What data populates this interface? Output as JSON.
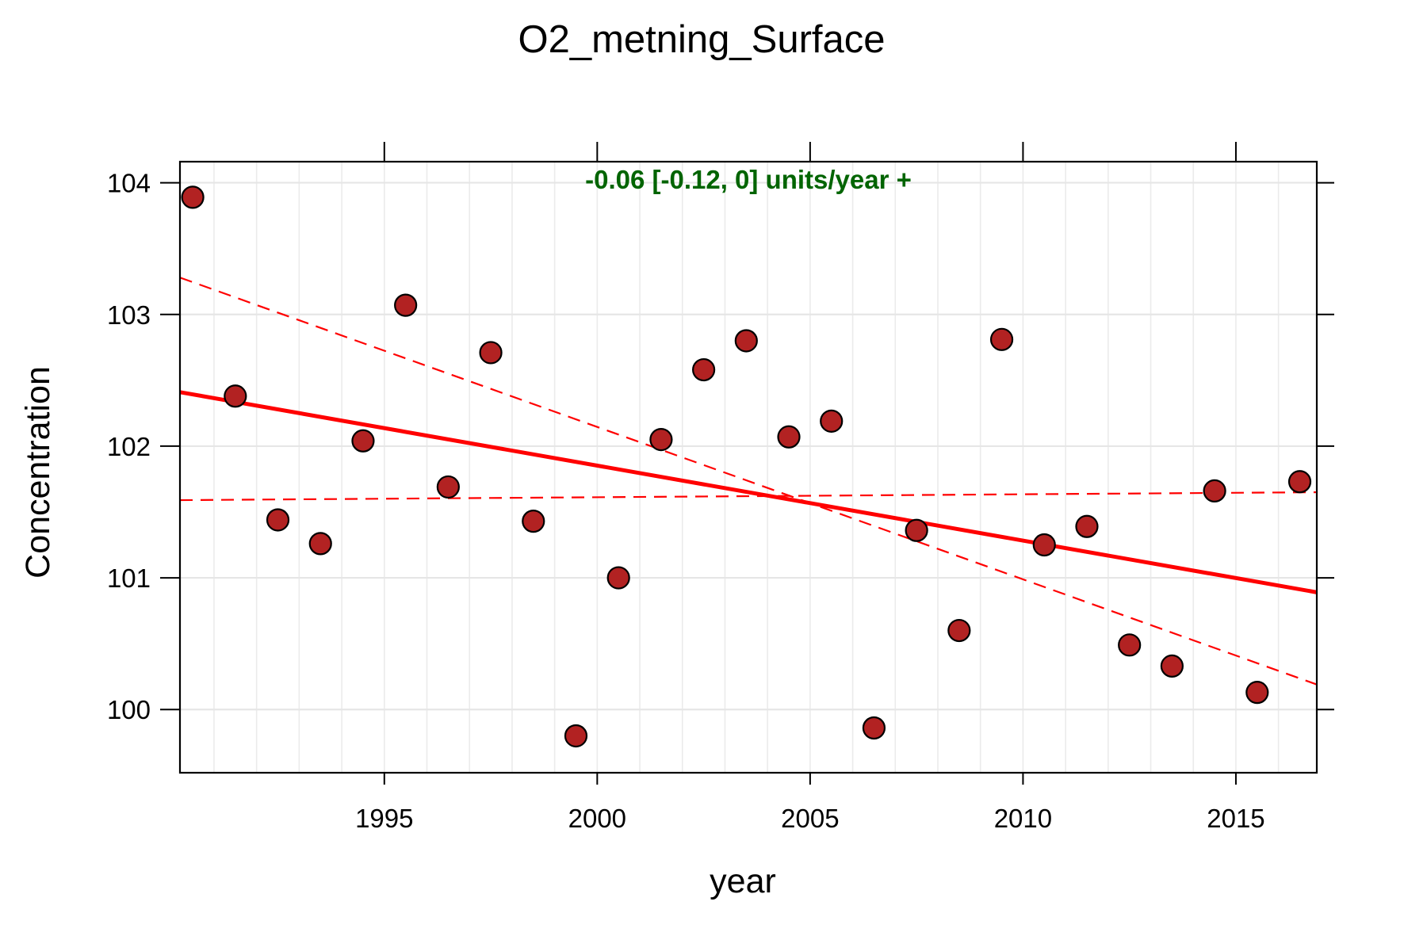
{
  "chart_data": {
    "type": "scatter",
    "title": "O2_metning_Surface",
    "xlabel": "year",
    "ylabel": "Concentration",
    "xlim": [
      1990.2,
      2016.9
    ],
    "ylim": [
      99.52,
      104.16
    ],
    "x_ticks": [
      1995,
      2000,
      2005,
      2010,
      2015
    ],
    "y_ticks": [
      100,
      101,
      102,
      103,
      104
    ],
    "x_minor_grid_step": 1,
    "grid": true,
    "annotation": {
      "text": "-0.06 [-0.12, 0] units/year +",
      "color": "#006400",
      "position": "top-center"
    },
    "points": {
      "fill_color": "#B22222",
      "edge_color": "#000000",
      "x": [
        1990.5,
        1991.5,
        1992.5,
        1993.5,
        1994.5,
        1995.5,
        1996.5,
        1997.5,
        1998.5,
        1999.5,
        2000.5,
        2001.5,
        2002.5,
        2003.5,
        2004.5,
        2005.5,
        2006.5,
        2007.5,
        2008.5,
        2009.5,
        2010.5,
        2011.5,
        2012.5,
        2013.5,
        2014.5,
        2015.5,
        2016.5
      ],
      "y": [
        103.89,
        102.38,
        101.44,
        101.26,
        102.04,
        103.07,
        101.69,
        102.71,
        101.43,
        99.8,
        101.0,
        102.05,
        102.58,
        102.8,
        102.07,
        102.19,
        99.86,
        101.36,
        100.6,
        102.81,
        101.25,
        101.39,
        100.49,
        100.33,
        101.66,
        100.13,
        101.73
      ]
    },
    "lines": [
      {
        "name": "trend",
        "style": "solid",
        "color": "#FF0000",
        "x": [
          1990.2,
          2016.9
        ],
        "y": [
          102.41,
          100.89
        ]
      },
      {
        "name": "upper",
        "style": "dashed",
        "color": "#FF0000",
        "x": [
          1990.2,
          2016.9
        ],
        "y": [
          103.28,
          100.19
        ]
      },
      {
        "name": "lower",
        "style": "dashed",
        "color": "#FF0000",
        "x": [
          1990.2,
          2016.9
        ],
        "y": [
          101.59,
          101.65
        ]
      }
    ]
  }
}
